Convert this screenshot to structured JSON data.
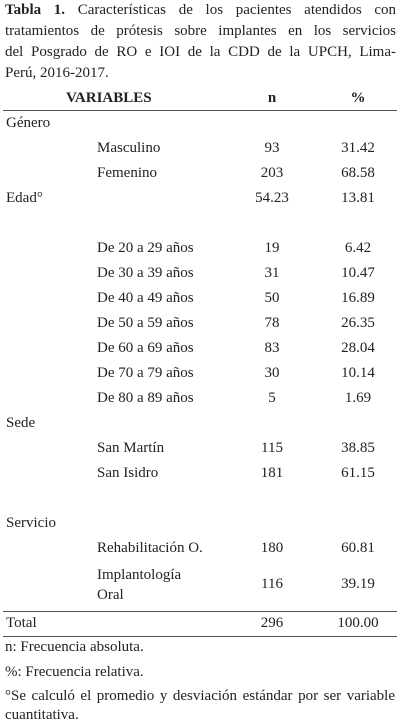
{
  "caption": {
    "label": "Tabla 1.",
    "lines": [
      "Características de los pacientes atendidos con",
      "tratamientos de prótesis sobre implantes en los servicios",
      "del Posgrado de RO e IOI de la CDD de la UPCH, Lima-",
      "Perú, 2016-2017."
    ]
  },
  "table": {
    "header": [
      "VARIABLES",
      "n",
      "%"
    ],
    "groups": [
      {
        "label": "Género",
        "items": [
          {
            "label": [
              "Masculino"
            ],
            "n": "93",
            "pct": "31.42"
          },
          {
            "label": [
              "Femenino"
            ],
            "n": "203",
            "pct": "68.58"
          }
        ]
      },
      {
        "label": "Edad°",
        "n": "54.23",
        "pct": "13.81",
        "items": [
          {
            "label": [
              "De 20 a 29 años"
            ],
            "n": "19",
            "pct": "6.42"
          },
          {
            "label": [
              "De 30 a 39 años"
            ],
            "n": "31",
            "pct": "10.47"
          },
          {
            "label": [
              "De 40 a 49 años"
            ],
            "n": "50",
            "pct": "16.89"
          },
          {
            "label": [
              "De 50 a 59 años"
            ],
            "n": "78",
            "pct": "26.35"
          },
          {
            "label": [
              "De 60 a 69 años"
            ],
            "n": "83",
            "pct": "28.04"
          },
          {
            "label": [
              "De 70 a 79 años"
            ],
            "n": "30",
            "pct": "10.14"
          },
          {
            "label": [
              "De 80 a 89 años"
            ],
            "n": "5",
            "pct": "1.69"
          }
        ]
      },
      {
        "label": "Sede",
        "items": [
          {
            "label": [
              "San Martín"
            ],
            "n": "115",
            "pct": "38.85"
          },
          {
            "label": [
              "San Isidro"
            ],
            "n": "181",
            "pct": "61.15"
          }
        ]
      },
      {
        "label": "Servicio",
        "items": [
          {
            "label": [
              "Rehabilitación O."
            ],
            "n": "180",
            "pct": "60.81"
          },
          {
            "label": [
              "Implantología",
              "Oral"
            ],
            "n": "116",
            "pct": "39.19"
          }
        ]
      }
    ],
    "total": {
      "label": "Total",
      "n": "296",
      "pct": "100.00"
    }
  },
  "footnotes": [
    "n: Frecuencia absoluta.",
    "%: Frecuencia relativa.",
    "°Se calculó el promedio y desviación estándar por ser variable cuantitativa."
  ]
}
